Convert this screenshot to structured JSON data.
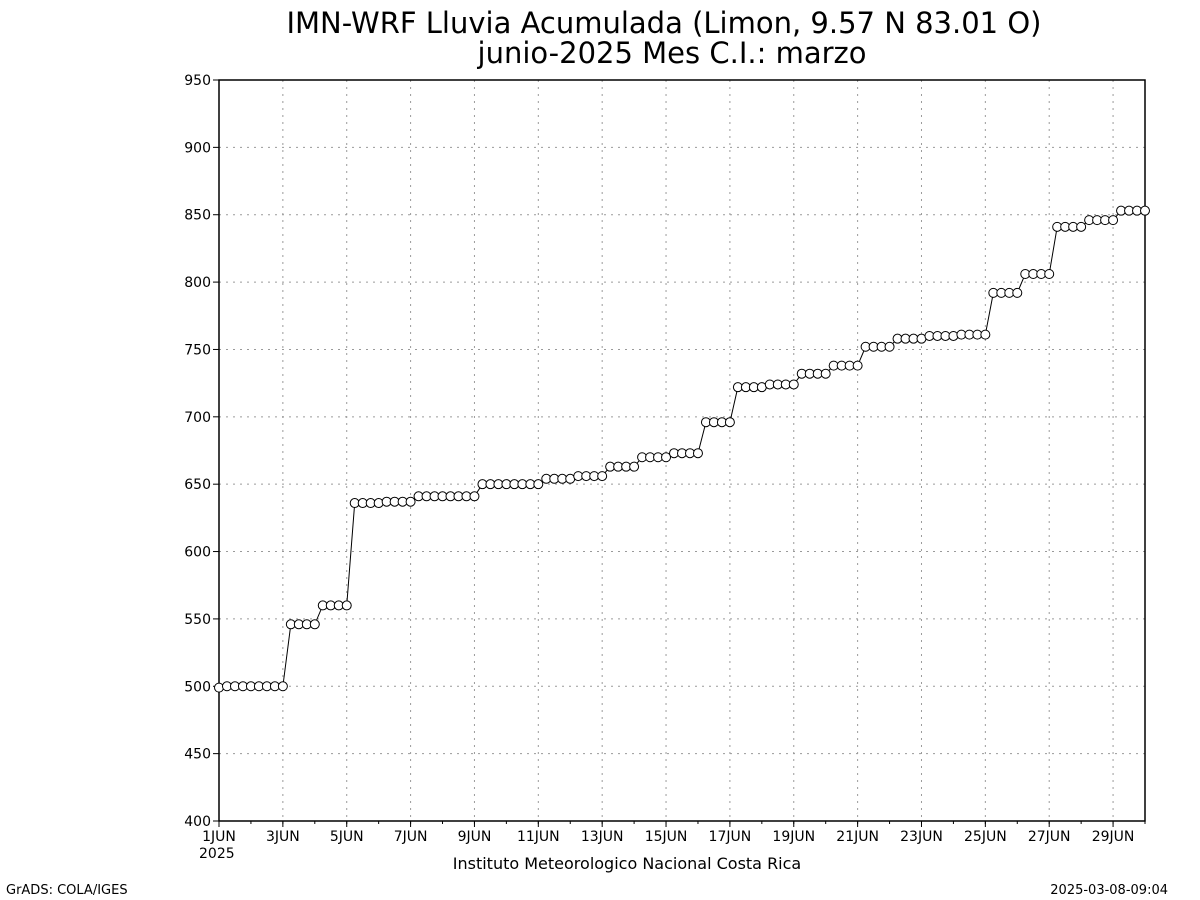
{
  "chart_data": {
    "type": "line",
    "title": "IMN-WRF  Lluvia Acumulada  (Limon, 9.57  N 83.01  O)",
    "subtitle": "junio-2025 Mes C.I.: marzo",
    "xlabel": "Instituto Meteorologico Nacional Costa Rica",
    "ylabel": "",
    "x_range": [
      "2025-06-01T00",
      "2025-06-30T00"
    ],
    "ylim": [
      400,
      950
    ],
    "y_ticks": [
      "400",
      "450",
      "500",
      "550",
      "600",
      "650",
      "700",
      "750",
      "800",
      "850",
      "900",
      "950"
    ],
    "x_ticks": [
      {
        "date": "2025-06-01",
        "label": "1JUN"
      },
      {
        "date": "2025-06-03",
        "label": "3JUN"
      },
      {
        "date": "2025-06-05",
        "label": "5JUN"
      },
      {
        "date": "2025-06-07",
        "label": "7JUN"
      },
      {
        "date": "2025-06-09",
        "label": "9JUN"
      },
      {
        "date": "2025-06-11",
        "label": "11JUN"
      },
      {
        "date": "2025-06-13",
        "label": "13JUN"
      },
      {
        "date": "2025-06-15",
        "label": "15JUN"
      },
      {
        "date": "2025-06-17",
        "label": "17JUN"
      },
      {
        "date": "2025-06-19",
        "label": "19JUN"
      },
      {
        "date": "2025-06-21",
        "label": "21JUN"
      },
      {
        "date": "2025-06-23",
        "label": "23JUN"
      },
      {
        "date": "2025-06-25",
        "label": "25JUN"
      },
      {
        "date": "2025-06-27",
        "label": "27JUN"
      },
      {
        "date": "2025-06-29",
        "label": "29JUN"
      }
    ],
    "x_year_label": "2025",
    "grid": true,
    "series": [
      {
        "x": [
          "2025-06-01T00",
          "2025-06-01T06",
          "2025-06-01T12",
          "2025-06-01T18",
          "2025-06-02T00",
          "2025-06-02T06",
          "2025-06-02T12",
          "2025-06-02T18",
          "2025-06-03T00",
          "2025-06-03T06",
          "2025-06-03T12",
          "2025-06-03T18",
          "2025-06-04T00",
          "2025-06-04T06",
          "2025-06-04T12",
          "2025-06-04T18",
          "2025-06-05T00",
          "2025-06-05T06",
          "2025-06-05T12",
          "2025-06-05T18",
          "2025-06-06T00",
          "2025-06-06T06",
          "2025-06-06T12",
          "2025-06-06T18",
          "2025-06-07T00",
          "2025-06-07T06",
          "2025-06-07T12",
          "2025-06-07T18",
          "2025-06-08T00",
          "2025-06-08T06",
          "2025-06-08T12",
          "2025-06-08T18",
          "2025-06-09T00",
          "2025-06-09T06",
          "2025-06-09T12",
          "2025-06-09T18",
          "2025-06-10T00",
          "2025-06-10T06",
          "2025-06-10T12",
          "2025-06-10T18",
          "2025-06-11T00",
          "2025-06-11T06",
          "2025-06-11T12",
          "2025-06-11T18",
          "2025-06-12T00",
          "2025-06-12T06",
          "2025-06-12T12",
          "2025-06-12T18",
          "2025-06-13T00",
          "2025-06-13T06",
          "2025-06-13T12",
          "2025-06-13T18",
          "2025-06-14T00",
          "2025-06-14T06",
          "2025-06-14T12",
          "2025-06-14T18",
          "2025-06-15T00",
          "2025-06-15T06",
          "2025-06-15T12",
          "2025-06-15T18",
          "2025-06-16T00",
          "2025-06-16T06",
          "2025-06-16T12",
          "2025-06-16T18",
          "2025-06-17T00",
          "2025-06-17T06",
          "2025-06-17T12",
          "2025-06-17T18",
          "2025-06-18T00",
          "2025-06-18T06",
          "2025-06-18T12",
          "2025-06-18T18",
          "2025-06-19T00",
          "2025-06-19T06",
          "2025-06-19T12",
          "2025-06-19T18",
          "2025-06-20T00",
          "2025-06-20T06",
          "2025-06-20T12",
          "2025-06-20T18",
          "2025-06-21T00",
          "2025-06-21T06",
          "2025-06-21T12",
          "2025-06-21T18",
          "2025-06-22T00",
          "2025-06-22T06",
          "2025-06-22T12",
          "2025-06-22T18",
          "2025-06-23T00",
          "2025-06-23T06",
          "2025-06-23T12",
          "2025-06-23T18",
          "2025-06-24T00",
          "2025-06-24T06",
          "2025-06-24T12",
          "2025-06-24T18",
          "2025-06-25T00",
          "2025-06-25T06",
          "2025-06-25T12",
          "2025-06-25T18",
          "2025-06-26T00",
          "2025-06-26T06",
          "2025-06-26T12",
          "2025-06-26T18",
          "2025-06-27T00",
          "2025-06-27T06",
          "2025-06-27T12",
          "2025-06-27T18",
          "2025-06-28T00",
          "2025-06-28T06",
          "2025-06-28T12",
          "2025-06-28T18",
          "2025-06-29T00",
          "2025-06-29T06",
          "2025-06-29T12",
          "2025-06-29T18",
          "2025-06-30T00"
        ],
        "values": [
          499,
          500,
          500,
          500,
          500,
          500,
          500,
          500,
          500,
          546,
          546,
          546,
          546,
          560,
          560,
          560,
          560,
          636,
          636,
          636,
          636,
          637,
          637,
          637,
          637,
          641,
          641,
          641,
          641,
          641,
          641,
          641,
          641,
          650,
          650,
          650,
          650,
          650,
          650,
          650,
          650,
          654,
          654,
          654,
          654,
          656,
          656,
          656,
          656,
          663,
          663,
          663,
          663,
          670,
          670,
          670,
          670,
          673,
          673,
          673,
          673,
          696,
          696,
          696,
          696,
          722,
          722,
          722,
          722,
          724,
          724,
          724,
          724,
          732,
          732,
          732,
          732,
          738,
          738,
          738,
          738,
          752,
          752,
          752,
          752,
          758,
          758,
          758,
          758,
          760,
          760,
          760,
          760,
          761,
          761,
          761,
          761,
          792,
          792,
          792,
          792,
          806,
          806,
          806,
          806,
          841,
          841,
          841,
          841,
          846,
          846,
          846,
          846,
          853,
          853,
          853,
          853
        ]
      }
    ]
  },
  "footer": {
    "left_credit": "GrADS: COLA/IGES",
    "right_timestamp": "2025-03-08-09:04"
  }
}
